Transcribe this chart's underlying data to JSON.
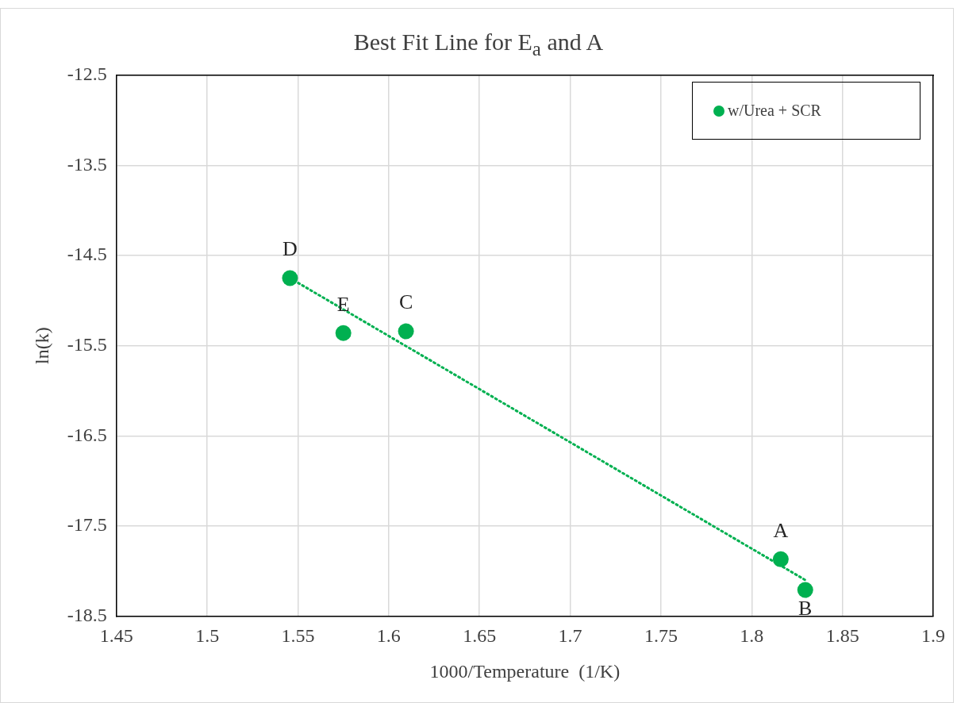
{
  "chart_data": {
    "type": "scatter",
    "title": "Best Fit Line for E$_{a}$ and A",
    "xlabel": "1000/Temperature  (1/K)",
    "ylabel": "ln(k)",
    "series": [
      {
        "name": "w/Urea + SCR",
        "color": "#00b050",
        "x": [
          1.816,
          1.8295,
          1.6095,
          1.5456,
          1.575
        ],
        "values": [
          -17.87,
          -18.21,
          -15.34,
          -14.75,
          -15.36
        ],
        "marker": "circle"
      },
      {
        "type": "line",
        "color": "#00b050",
        "x": [
          1.5456,
          1.8295
        ],
        "values": [
          -14.75,
          -18.1
        ],
        "line_style": "dotted",
        "marker": "none"
      }
    ],
    "annotations": [
      {
        "text": "A",
        "x": 1.816,
        "y": -17.87
      },
      {
        "text": "B",
        "x": 1.8295,
        "y": -18.21
      },
      {
        "text": "C",
        "x": 1.6095,
        "y": -15.34
      },
      {
        "text": "D",
        "x": 1.5456,
        "y": -14.75
      },
      {
        "text": "E",
        "x": 1.575,
        "y": -15.36
      }
    ],
    "xlim": [
      1.45,
      1.9
    ],
    "xticks": [
      1.45,
      1.5,
      1.55,
      1.6,
      1.65,
      1.7,
      1.75,
      1.8,
      1.85,
      1.9
    ],
    "ylim": [
      -18.5,
      -12.5
    ],
    "yticks": [
      -18.5,
      -17.5,
      -16.5,
      -15.5,
      -14.5,
      -13.5,
      -12.5
    ],
    "grid": true,
    "legend": "top right"
  }
}
